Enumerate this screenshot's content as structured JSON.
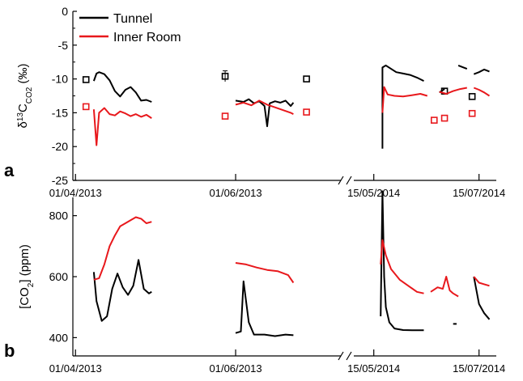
{
  "colors": {
    "tunnel": "#000000",
    "inner_room": "#e8181c"
  },
  "chart_data": [
    {
      "panel": "a",
      "type": "line",
      "ylabel_parts": [
        "δ",
        "13",
        "C",
        "CO2",
        " (‰)"
      ],
      "ylim": [
        -25,
        0
      ],
      "yticks": [
        "0",
        "-5",
        "-10",
        "-15",
        "-20",
        "-25"
      ],
      "xticks": [
        "01/04/2013",
        "01/06/2013",
        "15/05/2014",
        "15/07/2014"
      ],
      "legend": {
        "placement": "top-left",
        "entries": [
          "Tunnel",
          "Inner Room"
        ]
      },
      "series": [
        {
          "name": "Tunnel",
          "line_segments": [
            [
              [
                "2013-04-08",
                -10.3
              ],
              [
                "2013-04-09",
                -9.2
              ],
              [
                "2013-04-10",
                -9.0
              ],
              [
                "2013-04-12",
                -9.3
              ],
              [
                "2013-04-14",
                -10.2
              ],
              [
                "2013-04-16",
                -11.8
              ],
              [
                "2013-04-18",
                -12.6
              ],
              [
                "2013-04-20",
                -11.6
              ],
              [
                "2013-04-22",
                -11.2
              ],
              [
                "2013-04-24",
                -12.0
              ],
              [
                "2013-04-26",
                -13.2
              ],
              [
                "2013-04-28",
                -13.1
              ],
              [
                "2013-04-30",
                -13.4
              ]
            ],
            [
              [
                "2013-06-01",
                -13.2
              ],
              [
                "2013-06-04",
                -13.4
              ],
              [
                "2013-06-06",
                -13.0
              ],
              [
                "2013-06-08",
                -13.6
              ],
              [
                "2013-06-10",
                -13.3
              ],
              [
                "2013-06-12",
                -14.0
              ],
              [
                "2013-06-13",
                -17.0
              ],
              [
                "2013-06-14",
                -13.6
              ],
              [
                "2013-06-16",
                -13.3
              ],
              [
                "2013-06-18",
                -13.5
              ],
              [
                "2013-06-20",
                -13.2
              ],
              [
                "2013-06-22",
                -14.0
              ],
              [
                "2013-06-23",
                -13.5
              ]
            ],
            [
              [
                "2014-05-20",
                -20.3
              ],
              [
                "2014-05-20",
                -8.3
              ],
              [
                "2014-05-22",
                -8.0
              ],
              [
                "2014-05-25",
                -8.5
              ],
              [
                "2014-05-28",
                -9.0
              ],
              [
                "2014-06-01",
                -9.2
              ],
              [
                "2014-06-05",
                -9.4
              ],
              [
                "2014-06-09",
                -9.8
              ],
              [
                "2014-06-13",
                -10.3
              ]
            ],
            [
              [
                "2014-06-22",
                -12.0
              ],
              [
                "2014-06-25",
                -11.5
              ]
            ],
            [
              [
                "2014-07-03",
                -8.0
              ],
              [
                "2014-07-06",
                -8.3
              ],
              [
                "2014-07-08",
                -8.5
              ]
            ],
            [
              [
                "2014-07-12",
                -9.3
              ],
              [
                "2014-07-15",
                -9.0
              ],
              [
                "2014-07-18",
                -8.6
              ],
              [
                "2014-07-21",
                -8.9
              ]
            ]
          ],
          "points": [
            [
              "2013-04-05",
              -10.1
            ],
            [
              "2013-05-28",
              -9.6
            ],
            [
              "2013-06-28",
              -10.0
            ],
            [
              "2014-06-25",
              -11.8
            ],
            [
              "2014-07-11",
              -12.6
            ]
          ]
        },
        {
          "name": "Inner Room",
          "line_segments": [
            [
              [
                "2013-04-08",
                -14.5
              ],
              [
                "2013-04-09",
                -19.8
              ],
              [
                "2013-04-10",
                -15.0
              ],
              [
                "2013-04-12",
                -14.3
              ],
              [
                "2013-04-14",
                -15.2
              ],
              [
                "2013-04-16",
                -15.4
              ],
              [
                "2013-04-18",
                -14.8
              ],
              [
                "2013-04-20",
                -15.1
              ],
              [
                "2013-04-22",
                -15.5
              ],
              [
                "2013-04-24",
                -15.2
              ],
              [
                "2013-04-26",
                -15.6
              ],
              [
                "2013-04-28",
                -15.3
              ],
              [
                "2013-04-30",
                -15.8
              ]
            ],
            [
              [
                "2013-06-01",
                -13.8
              ],
              [
                "2013-06-04",
                -13.5
              ],
              [
                "2013-06-07",
                -13.9
              ],
              [
                "2013-06-10",
                -13.2
              ],
              [
                "2013-06-13",
                -13.8
              ],
              [
                "2013-06-16",
                -14.2
              ],
              [
                "2013-06-19",
                -14.6
              ],
              [
                "2013-06-22",
                -15.0
              ],
              [
                "2013-06-23",
                -15.2
              ]
            ],
            [
              [
                "2014-05-20",
                -15.0
              ],
              [
                "2014-05-21",
                -11.2
              ],
              [
                "2014-05-23",
                -12.3
              ],
              [
                "2014-05-27",
                -12.5
              ],
              [
                "2014-06-01",
                -12.6
              ],
              [
                "2014-06-06",
                -12.4
              ],
              [
                "2014-06-11",
                -12.2
              ],
              [
                "2014-06-15",
                -12.5
              ]
            ],
            [
              [
                "2014-06-22",
                -11.9
              ],
              [
                "2014-06-26",
                -12.2
              ],
              [
                "2014-06-30",
                -11.8
              ],
              [
                "2014-07-04",
                -11.5
              ],
              [
                "2014-07-08",
                -11.3
              ]
            ],
            [
              [
                "2014-07-12",
                -11.3
              ],
              [
                "2014-07-15",
                -11.6
              ],
              [
                "2014-07-18",
                -12.0
              ],
              [
                "2014-07-21",
                -12.5
              ]
            ]
          ],
          "points": [
            [
              "2013-04-05",
              -14.1
            ],
            [
              "2013-05-28",
              -15.5
            ],
            [
              "2013-06-28",
              -14.9
            ],
            [
              "2014-06-19",
              -16.1
            ],
            [
              "2014-06-25",
              -15.8
            ],
            [
              "2014-07-11",
              -15.1
            ]
          ]
        }
      ]
    },
    {
      "panel": "b",
      "type": "line",
      "ylabel_parts": [
        "[CO",
        "2",
        "] (ppm)"
      ],
      "ylim": [
        340,
        860
      ],
      "yticks": [
        "800",
        "600",
        "400"
      ],
      "ytick_values": [
        800,
        600,
        400
      ],
      "xticks": [
        "01/04/2013",
        "01/06/2013",
        "15/05/2014",
        "15/07/2014"
      ],
      "series": [
        {
          "name": "Tunnel",
          "line_segments": [
            [
              [
                "2013-04-08",
                615
              ],
              [
                "2013-04-09",
                520
              ],
              [
                "2013-04-11",
                455
              ],
              [
                "2013-04-13",
                470
              ],
              [
                "2013-04-15",
                560
              ],
              [
                "2013-04-17",
                610
              ],
              [
                "2013-04-19",
                565
              ],
              [
                "2013-04-21",
                540
              ],
              [
                "2013-04-23",
                570
              ],
              [
                "2013-04-25",
                655
              ],
              [
                "2013-04-27",
                560
              ],
              [
                "2013-04-29",
                545
              ],
              [
                "2013-04-30",
                550
              ]
            ],
            [
              [
                "2013-06-01",
                415
              ],
              [
                "2013-06-03",
                420
              ],
              [
                "2013-06-04",
                585
              ],
              [
                "2013-06-06",
                450
              ],
              [
                "2013-06-08",
                410
              ],
              [
                "2013-06-12",
                410
              ],
              [
                "2013-06-16",
                405
              ],
              [
                "2013-06-20",
                410
              ],
              [
                "2013-06-23",
                408
              ]
            ],
            [
              [
                "2014-05-19",
                470
              ],
              [
                "2014-05-20",
                880
              ],
              [
                "2014-05-21",
                600
              ],
              [
                "2014-05-22",
                500
              ],
              [
                "2014-05-24",
                450
              ],
              [
                "2014-05-27",
                430
              ],
              [
                "2014-06-01",
                425
              ],
              [
                "2014-06-07",
                424
              ],
              [
                "2014-06-13",
                424
              ]
            ],
            [
              [
                "2014-06-30",
                445
              ],
              [
                "2014-07-02",
                445
              ]
            ],
            [
              [
                "2014-07-12",
                600
              ],
              [
                "2014-07-15",
                510
              ],
              [
                "2014-07-18",
                480
              ],
              [
                "2014-07-21",
                460
              ]
            ]
          ]
        },
        {
          "name": "Inner Room",
          "line_segments": [
            [
              [
                "2013-04-08",
                590
              ],
              [
                "2013-04-10",
                595
              ],
              [
                "2013-04-12",
                640
              ],
              [
                "2013-04-14",
                700
              ],
              [
                "2013-04-16",
                735
              ],
              [
                "2013-04-18",
                765
              ],
              [
                "2013-04-20",
                775
              ],
              [
                "2013-04-22",
                785
              ],
              [
                "2013-04-24",
                795
              ],
              [
                "2013-04-26",
                790
              ],
              [
                "2013-04-28",
                775
              ],
              [
                "2013-04-30",
                780
              ]
            ],
            [
              [
                "2013-06-01",
                645
              ],
              [
                "2013-06-05",
                640
              ],
              [
                "2013-06-09",
                630
              ],
              [
                "2013-06-13",
                622
              ],
              [
                "2013-06-17",
                618
              ],
              [
                "2013-06-21",
                605
              ],
              [
                "2013-06-23",
                580
              ]
            ],
            [
              [
                "2014-05-19",
                640
              ],
              [
                "2014-05-20",
                720
              ],
              [
                "2014-05-22",
                670
              ],
              [
                "2014-05-25",
                625
              ],
              [
                "2014-05-30",
                590
              ],
              [
                "2014-06-04",
                570
              ],
              [
                "2014-06-09",
                550
              ],
              [
                "2014-06-13",
                545
              ]
            ],
            [
              [
                "2014-06-17",
                550
              ],
              [
                "2014-06-21",
                565
              ],
              [
                "2014-06-24",
                560
              ],
              [
                "2014-06-26",
                600
              ],
              [
                "2014-06-28",
                555
              ],
              [
                "2014-06-30",
                545
              ],
              [
                "2014-07-03",
                535
              ]
            ],
            [
              [
                "2014-07-12",
                600
              ],
              [
                "2014-07-15",
                580
              ],
              [
                "2014-07-18",
                575
              ],
              [
                "2014-07-21",
                570
              ]
            ]
          ]
        }
      ]
    }
  ]
}
